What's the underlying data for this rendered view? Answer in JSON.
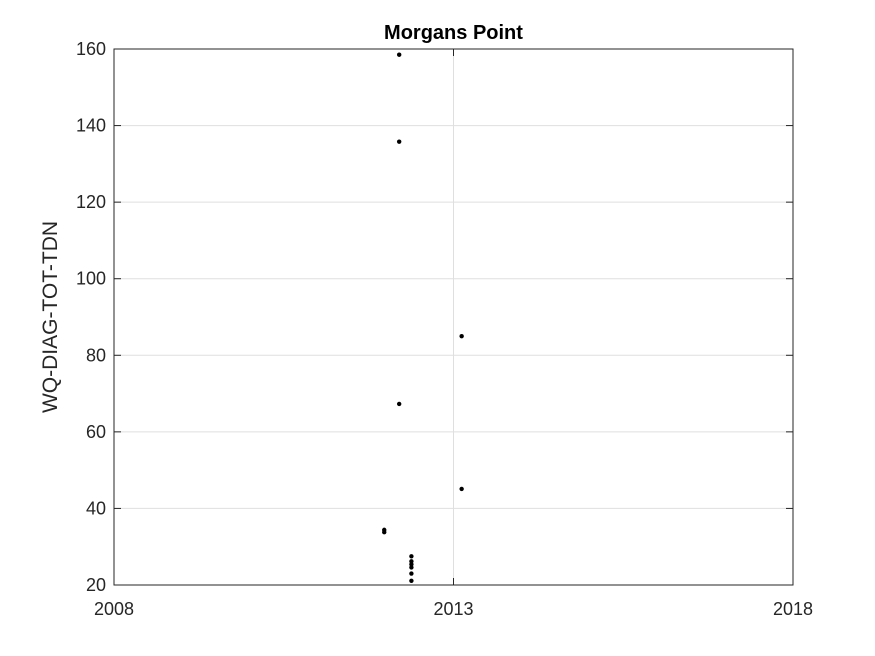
{
  "chart_data": {
    "type": "scatter",
    "title": "Morgans Point",
    "xlabel": "",
    "ylabel": "WQ-DIAG-TOT-TDN",
    "xlim": [
      2008,
      2018
    ],
    "ylim": [
      20,
      160
    ],
    "xticks": [
      "2008",
      "2013",
      "2018"
    ],
    "yticks": [
      "20",
      "40",
      "60",
      "80",
      "100",
      "120",
      "140",
      "160"
    ],
    "grid": true,
    "marker_color": "#000000",
    "series": [
      {
        "points": [
          {
            "x": 2012.2,
            "y": 158.5
          },
          {
            "x": 2012.2,
            "y": 135.8
          },
          {
            "x": 2012.2,
            "y": 67.3
          },
          {
            "x": 2011.98,
            "y": 34.4
          },
          {
            "x": 2011.98,
            "y": 33.8
          },
          {
            "x": 2012.38,
            "y": 27.5
          },
          {
            "x": 2012.38,
            "y": 26.2
          },
          {
            "x": 2012.38,
            "y": 25.4
          },
          {
            "x": 2012.38,
            "y": 24.6
          },
          {
            "x": 2012.38,
            "y": 23.0
          },
          {
            "x": 2012.38,
            "y": 21.1
          },
          {
            "x": 2013.12,
            "y": 85.0
          },
          {
            "x": 2013.12,
            "y": 45.1
          }
        ]
      }
    ]
  }
}
